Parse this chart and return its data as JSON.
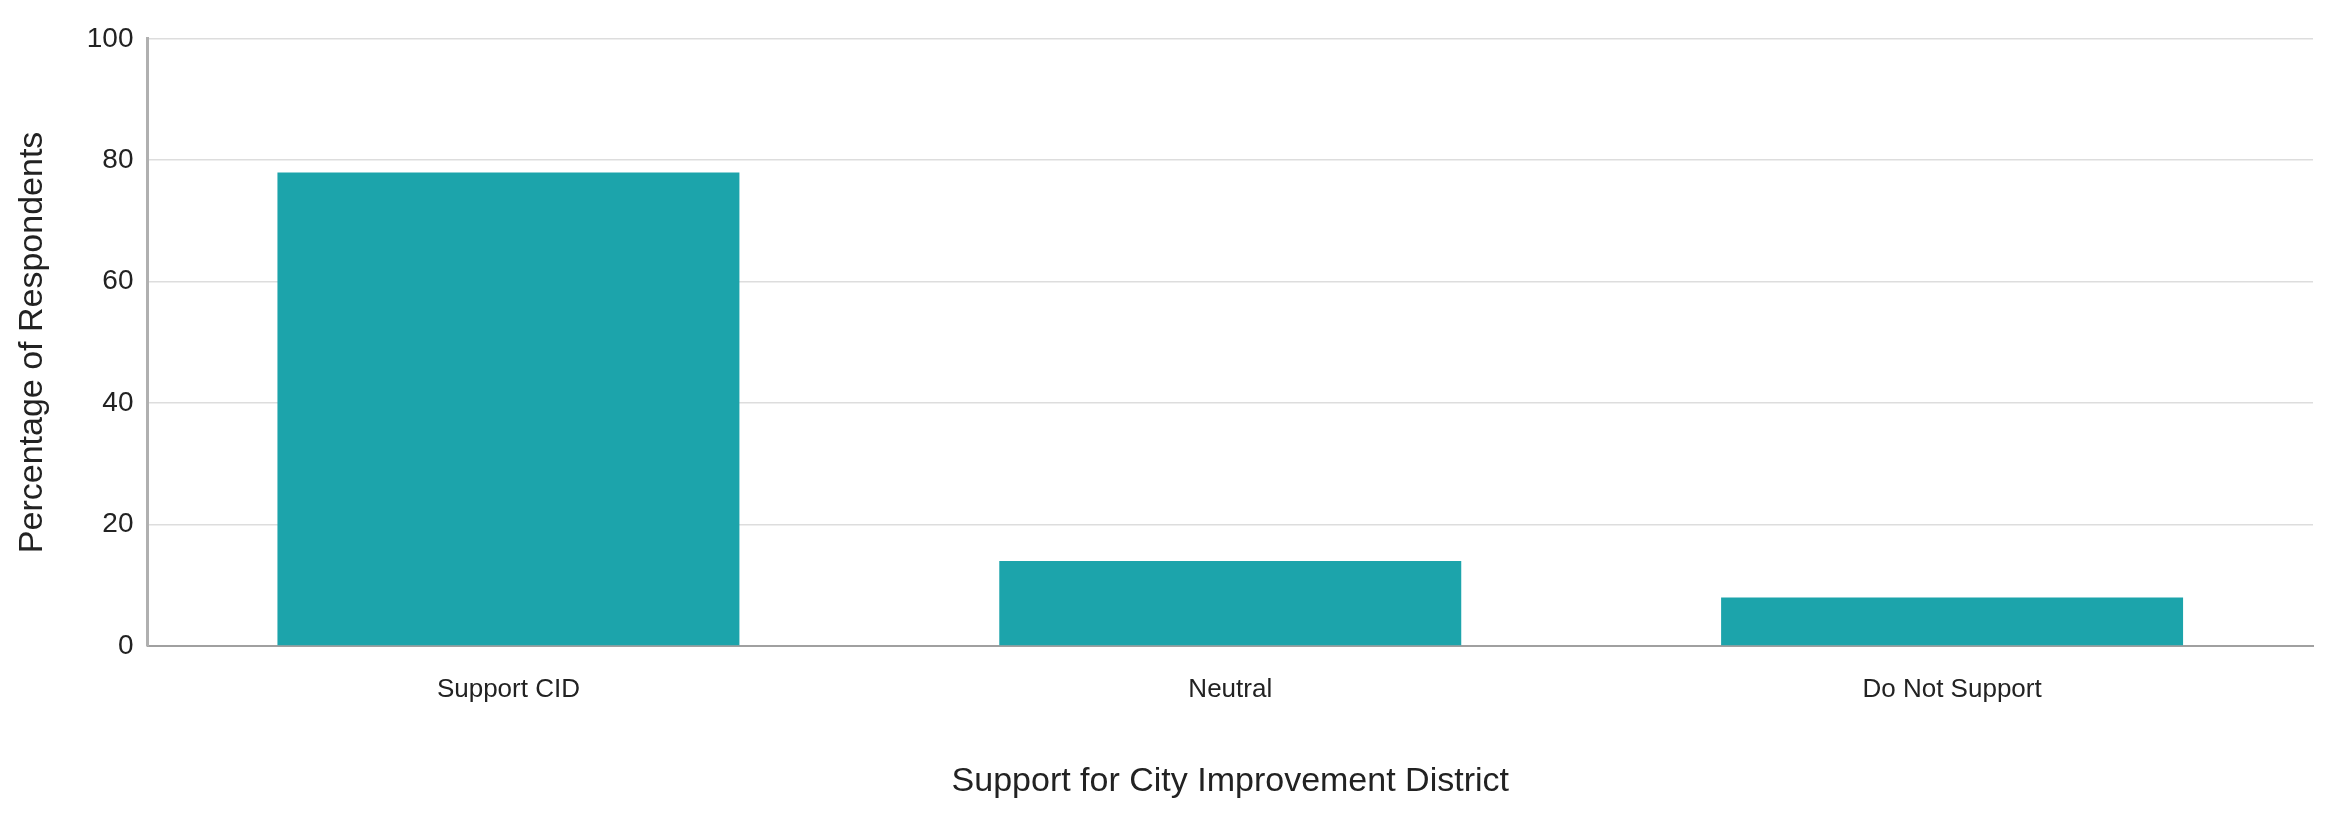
{
  "chart_data": {
    "type": "bar",
    "xlabel": "Support for City Improvement District",
    "ylabel": "Percentage of Respondents",
    "categories": [
      "Support CID",
      "Neutral",
      "Do Not Support"
    ],
    "values": [
      78,
      14,
      8
    ],
    "color": "#1ca4ab",
    "ylim": [
      0,
      100
    ],
    "yticks": [
      0,
      20,
      40,
      60,
      80,
      100
    ],
    "grid": "y",
    "legend": false
  }
}
